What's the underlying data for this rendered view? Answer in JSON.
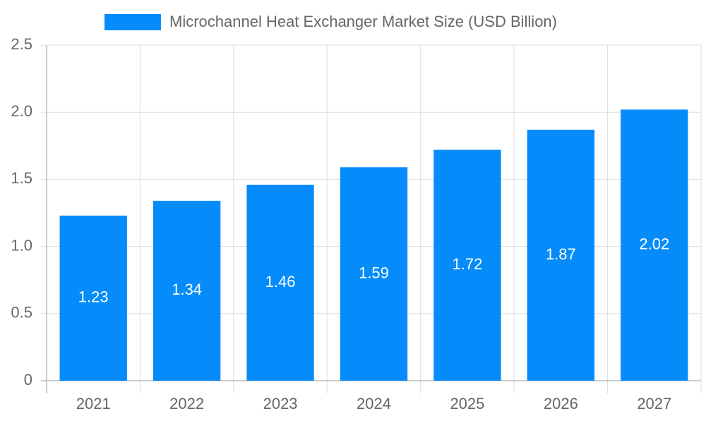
{
  "chart_data": {
    "type": "bar",
    "categories": [
      "2021",
      "2022",
      "2023",
      "2024",
      "2025",
      "2026",
      "2027"
    ],
    "series": [
      {
        "name": "Microchannel Heat Exchanger Market Size (USD Billion)",
        "color": "#068cfa",
        "values": [
          1.23,
          1.34,
          1.46,
          1.59,
          1.72,
          1.87,
          2.02
        ]
      }
    ],
    "ylim": [
      0,
      2.5
    ],
    "yticks": [
      0,
      0.5,
      {
        "value": 1,
        "label": "1.0"
      },
      1.5,
      {
        "value": 2,
        "label": "2.0"
      },
      2.5
    ],
    "grid": true,
    "legend": "top"
  }
}
